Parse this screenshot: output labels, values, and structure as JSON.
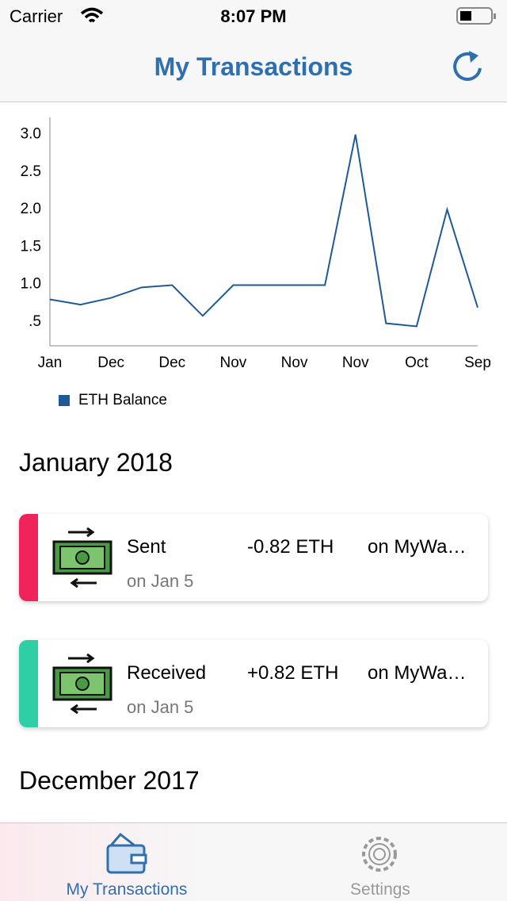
{
  "status_bar": {
    "carrier": "Carrier",
    "time": "8:07 PM"
  },
  "nav": {
    "title": "My Transactions"
  },
  "chart_data": {
    "type": "line",
    "categories": [
      "Jan",
      null,
      "Dec",
      null,
      "Dec",
      null,
      "Nov",
      null,
      "Nov",
      null,
      "Nov",
      null,
      "Oct",
      null,
      "Sep"
    ],
    "series": [
      {
        "name": "ETH Balance",
        "color": "#1f5a96",
        "values": [
          0.8,
          0.73,
          0.82,
          0.96,
          0.99,
          0.58,
          0.99,
          0.99,
          0.99,
          0.99,
          3.0,
          0.48,
          0.44,
          2.0,
          0.69
        ]
      }
    ],
    "ylim": [
      0.18,
      3.23
    ],
    "yticks": [
      {
        "value": 0.5,
        "label": ".5"
      },
      {
        "value": 1,
        "label": "1.0"
      },
      {
        "value": 1.5,
        "label": "1.5"
      },
      {
        "value": 2,
        "label": "2.0"
      },
      {
        "value": 2.5,
        "label": "2.5"
      },
      {
        "value": 3,
        "label": "3.0"
      }
    ],
    "grid": false,
    "legend": "bottom-left"
  },
  "sections": [
    {
      "title": "January 2018",
      "transactions": [
        {
          "type": "Sent",
          "amount": "-0.82 ETH",
          "wallet": "on MyWa…",
          "date": "on Jan 5",
          "color": "#f0245a"
        },
        {
          "type": "Received",
          "amount": "+0.82 ETH",
          "wallet": "on MyWa…",
          "date": "on Jan 5",
          "color": "#2ecfa4"
        }
      ]
    },
    {
      "title": "December 2017",
      "transactions": []
    }
  ],
  "tabs": [
    {
      "label": "My Transactions",
      "active": true
    },
    {
      "label": "Settings",
      "active": false
    }
  ]
}
